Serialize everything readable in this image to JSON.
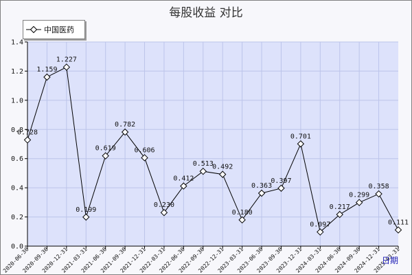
{
  "chart_data": {
    "type": "line",
    "title": "每股收益  对比",
    "xlabel": "",
    "ylabel": "",
    "period_label": "日期",
    "ylim": [
      0,
      1.4
    ],
    "yticks": [
      "0.0",
      "0.2",
      "0.4",
      "0.6",
      "0.8",
      "1.0",
      "1.2",
      "1.4"
    ],
    "grid": true,
    "legend_position": "top-left",
    "categories": [
      "2020-06-30",
      "2020-09-30",
      "2020-12-31",
      "2021-03-31",
      "2021-06-30",
      "2021-09-30",
      "2021-12-31",
      "2022-03-31",
      "2022-06-30",
      "2022-09-30",
      "2022-12-31",
      "2023-03-31",
      "2023-06-30",
      "2023-09-30",
      "2023-12-31",
      "2024-03-31",
      "2024-06-30",
      "2024-09-30",
      "2024-12-31",
      "2025-03-31"
    ],
    "series": [
      {
        "name": "中国医药",
        "values": [
          0.728,
          1.159,
          1.227,
          0.199,
          0.619,
          0.782,
          0.606,
          0.23,
          0.412,
          0.513,
          0.492,
          0.18,
          0.363,
          0.397,
          0.701,
          0.097,
          0.217,
          0.299,
          0.358,
          0.111
        ],
        "labels": [
          "0.728",
          "1.159",
          "1.227",
          "0.199",
          "0.619",
          "0.782",
          "0.606",
          "0.230",
          "0.412",
          "0.513",
          "0.492",
          "0.180",
          "0.363",
          "0.397",
          "0.701",
          "0.097",
          "0.217",
          "0.299",
          "0.358",
          "0.111"
        ]
      }
    ],
    "colors": {
      "plot_background": "#dde2fb",
      "gridline": "#bcc4ea",
      "line": "#000000",
      "marker_fill": "#ffffff",
      "axis": "#000000",
      "period_label": "#1a1ab4"
    }
  }
}
